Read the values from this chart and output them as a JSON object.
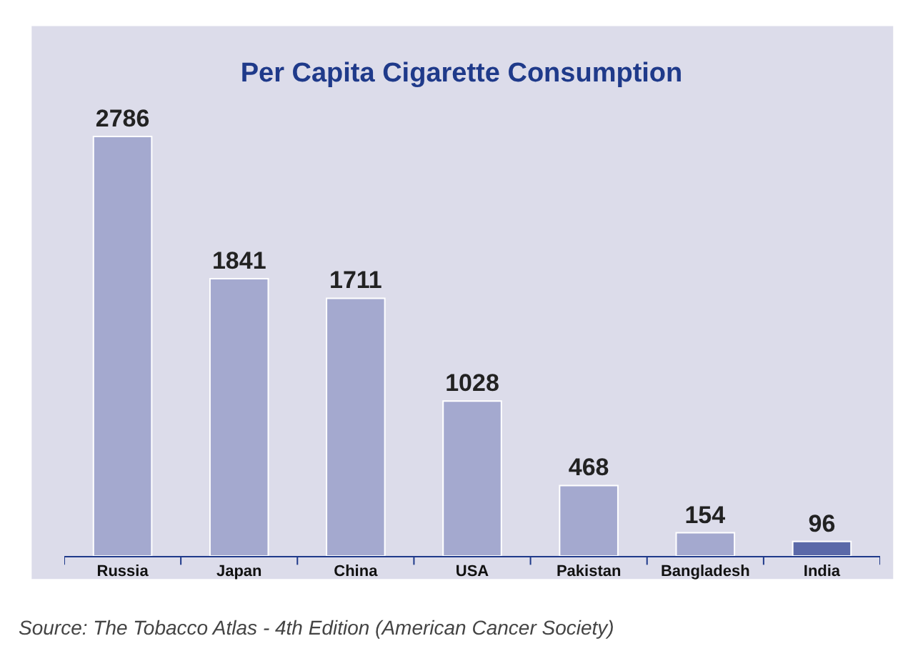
{
  "chart_data": {
    "type": "bar",
    "title": "Per Capita Cigarette Consumption",
    "categories": [
      "Russia",
      "Japan",
      "China",
      "USA",
      "Pakistan",
      "Bangladesh",
      "India"
    ],
    "values": [
      2786,
      1841,
      1711,
      1028,
      468,
      154,
      96
    ],
    "colors": [
      "#a4a9cf",
      "#a4a9cf",
      "#a4a9cf",
      "#a4a9cf",
      "#a4a9cf",
      "#a4a9cf",
      "#5b69a8"
    ],
    "data_labels": true,
    "annotations": [
      "Source: The Tobacco Atlas - 4th Edition (American Cancer Society)"
    ]
  }
}
